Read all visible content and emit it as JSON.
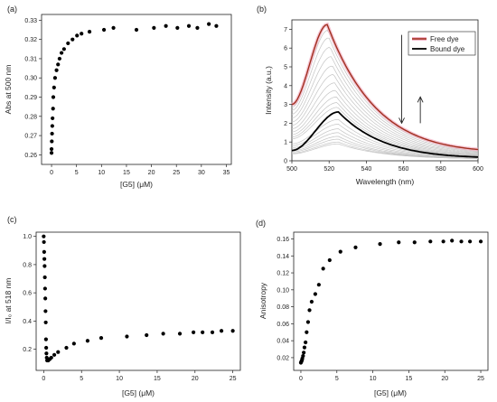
{
  "colors": {
    "axis": "#222222",
    "point": "#000000",
    "free_dye": "#a0301f",
    "free_halo": "#f4b6c9",
    "bound_dye": "#000000",
    "intermediate": "#c4c4c4"
  },
  "chart_data": [
    {
      "panel": "(a)",
      "type": "scatter",
      "xlabel": "[G5] (μM)",
      "ylabel": "Abs at 500 nm",
      "xlim": [
        -2,
        36
      ],
      "ylim": [
        0.255,
        0.333
      ],
      "xticks": [
        0,
        5,
        10,
        15,
        20,
        25,
        30,
        35
      ],
      "yticks": [
        0.26,
        0.27,
        0.28,
        0.29,
        0.3,
        0.31,
        0.32,
        0.33
      ],
      "ytick_labels": [
        "0.26",
        "0.27",
        "0.28",
        "0.29",
        "0.30",
        "0.31",
        "0.32",
        "0.33"
      ],
      "x": [
        0,
        0,
        0.05,
        0.1,
        0.15,
        0.2,
        0.3,
        0.35,
        0.5,
        0.7,
        1.0,
        1.3,
        1.6,
        2.0,
        2.5,
        3.3,
        4.2,
        5.1,
        6.0,
        7.6,
        10.5,
        12.4,
        17.0,
        20.5,
        22.9,
        25.2,
        27.5,
        29.2,
        31.5,
        33.0
      ],
      "y": [
        0.261,
        0.263,
        0.267,
        0.271,
        0.275,
        0.279,
        0.284,
        0.29,
        0.295,
        0.3,
        0.304,
        0.307,
        0.31,
        0.313,
        0.315,
        0.318,
        0.32,
        0.322,
        0.323,
        0.324,
        0.325,
        0.326,
        0.325,
        0.326,
        0.327,
        0.326,
        0.327,
        0.326,
        0.328,
        0.327
      ],
      "legend": "none",
      "grid": false
    },
    {
      "panel": "(b)",
      "type": "line",
      "xlabel": "Wavelength (nm)",
      "ylabel": "Intensity (a.u.)",
      "xlim": [
        500,
        600
      ],
      "ylim": [
        0,
        7.5
      ],
      "xticks": [
        500,
        520,
        540,
        560,
        580,
        600
      ],
      "yticks": [
        0,
        1,
        2,
        3,
        4,
        5,
        6,
        7
      ],
      "ytick_labels": [
        "0",
        "1",
        "2",
        "3",
        "4",
        "5",
        "6",
        "7"
      ],
      "series": [
        {
          "name": "Free dye",
          "peak_wavelength": 519,
          "peak_intensity": 7.25,
          "start_intensity": 3.0,
          "end_intensity": 0.6,
          "color": "#a0301f"
        },
        {
          "name": "Bound dye",
          "peak_wavelength": 525,
          "peak_intensity": 2.6,
          "start_intensity": 0.55,
          "end_intensity": 0.2,
          "color": "#000000"
        }
      ],
      "intermediate_peak_intensities": [
        6.95,
        6.55,
        6.05,
        5.55,
        5.05,
        4.6,
        4.15,
        3.75,
        3.4,
        3.1,
        2.85,
        2.2,
        1.95,
        1.7,
        1.5,
        1.3,
        1.15,
        1.0,
        0.9
      ],
      "legend_position": "top-right",
      "arrow_down": {
        "x": 559,
        "from": 6.7,
        "to": 2.0
      },
      "arrow_up": {
        "x": 569,
        "from": 2.0,
        "to": 3.4
      },
      "grid": false
    },
    {
      "panel": "(c)",
      "type": "scatter",
      "xlabel": "[G5] (μM)",
      "ylabel": "I/I₀ at 518 nm",
      "xlim": [
        -1,
        26
      ],
      "ylim": [
        0.05,
        1.03
      ],
      "xticks": [
        0,
        5,
        10,
        15,
        20,
        25
      ],
      "yticks": [
        0.2,
        0.4,
        0.6,
        0.8,
        1.0
      ],
      "ytick_labels": [
        "0.2",
        "0.4",
        "0.6",
        "0.8",
        "1.0"
      ],
      "x": [
        0,
        0.03,
        0.06,
        0.09,
        0.12,
        0.15,
        0.18,
        0.21,
        0.24,
        0.27,
        0.3,
        0.33,
        0.36,
        0.4,
        0.45,
        0.6,
        0.8,
        1.0,
        1.4,
        1.9,
        3.0,
        4.0,
        5.8,
        7.6,
        11.0,
        13.6,
        15.8,
        18.0,
        19.8,
        21.0,
        22.3,
        23.5,
        25.0
      ],
      "y": [
        1.0,
        0.96,
        0.89,
        0.84,
        0.79,
        0.71,
        0.63,
        0.56,
        0.47,
        0.39,
        0.27,
        0.21,
        0.17,
        0.14,
        0.12,
        0.12,
        0.13,
        0.14,
        0.16,
        0.18,
        0.21,
        0.24,
        0.26,
        0.28,
        0.29,
        0.3,
        0.31,
        0.31,
        0.32,
        0.32,
        0.32,
        0.33,
        0.33
      ],
      "legend": "none",
      "grid": false
    },
    {
      "panel": "(d)",
      "type": "scatter",
      "xlabel": "[G5] (μM)",
      "ylabel": "Anisotropy",
      "xlim": [
        -1,
        26
      ],
      "ylim": [
        0.005,
        0.168
      ],
      "xticks": [
        0,
        5,
        10,
        15,
        20,
        25
      ],
      "yticks": [
        0.02,
        0.04,
        0.06,
        0.08,
        0.1,
        0.12,
        0.14,
        0.16
      ],
      "ytick_labels": [
        "0.02",
        "0.04",
        "0.06",
        "0.08",
        "0.10",
        "0.12",
        "0.14",
        "0.16"
      ],
      "x": [
        0,
        0.05,
        0.1,
        0.15,
        0.2,
        0.3,
        0.4,
        0.5,
        0.65,
        0.8,
        1.0,
        1.2,
        1.5,
        2.0,
        2.5,
        3.1,
        4.0,
        5.5,
        7.6,
        11.0,
        13.6,
        15.8,
        18.0,
        19.8,
        21.0,
        22.3,
        23.5,
        25.0
      ],
      "y": [
        0.014,
        0.015,
        0.016,
        0.017,
        0.019,
        0.022,
        0.026,
        0.032,
        0.038,
        0.05,
        0.062,
        0.076,
        0.086,
        0.095,
        0.106,
        0.125,
        0.135,
        0.145,
        0.15,
        0.154,
        0.156,
        0.156,
        0.157,
        0.157,
        0.158,
        0.157,
        0.157,
        0.157
      ],
      "legend": "none",
      "grid": false
    }
  ]
}
